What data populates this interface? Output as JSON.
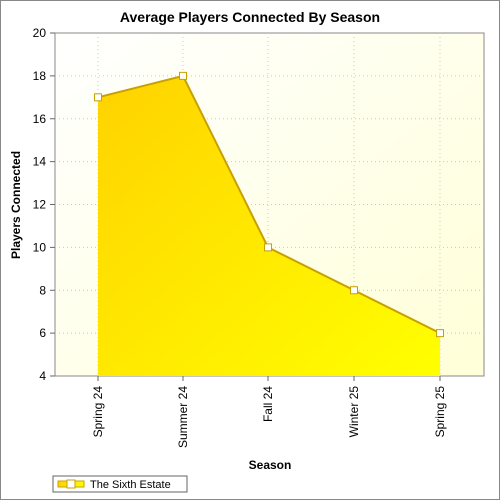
{
  "chart_data": {
    "type": "area",
    "title": "Average Players Connected By Season",
    "xlabel": "Season",
    "ylabel": "Players Connected",
    "categories": [
      "Spring 24",
      "Summer 24",
      "Fall 24",
      "Winter 25",
      "Spring 25"
    ],
    "series": [
      {
        "name": "The Sixth Estate",
        "values": [
          17,
          18,
          10,
          8,
          6
        ]
      }
    ],
    "ylim": [
      4,
      20
    ],
    "yticks": [
      "4",
      "6",
      "8",
      "10",
      "12",
      "14",
      "16",
      "18",
      "20"
    ],
    "grid": true,
    "legend_position": "bottom-left",
    "colors": {
      "fill_top": "#ffd700",
      "fill_bottom": "#ffff00",
      "line": "#c8a000",
      "marker_fill": "#ffffff",
      "plot_bg_light": "#ffffe8",
      "plot_bg": "#fffff0"
    }
  }
}
